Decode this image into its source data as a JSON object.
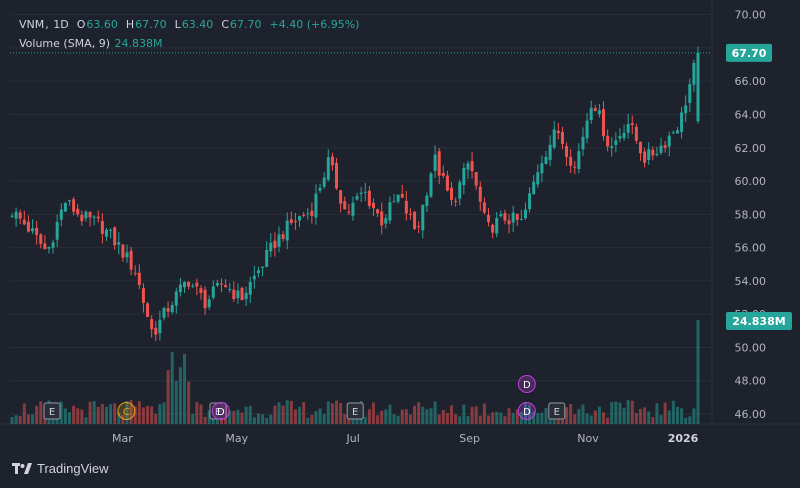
{
  "legend": {
    "symbol": "VNM",
    "interval": "1D",
    "open_label": "O",
    "open": "63.60",
    "high_label": "H",
    "high": "67.70",
    "low_label": "L",
    "low": "63.40",
    "close_label": "C",
    "close": "67.70",
    "change": "+4.40 (+6.95%)",
    "volume_label": "Volume (SMA, 9)",
    "volume_value": "24.838M"
  },
  "branding": {
    "name": "TradingView"
  },
  "colors": {
    "up": "#26a69a",
    "down": "#ef5350",
    "background": "#1e222d",
    "grid": "#2a2e39",
    "text": "#b2b5be",
    "dividend": "#c03ee0",
    "split": "#e8a317"
  },
  "chart_data": {
    "type": "candlestick",
    "price_axis": {
      "ylim": [
        45.4,
        70.4
      ],
      "ticks": [
        "70.00",
        "68.00",
        "66.00",
        "64.00",
        "62.00",
        "60.00",
        "58.00",
        "56.00",
        "54.00",
        "52.00",
        "50.00",
        "48.00",
        "46.00"
      ]
    },
    "last_price_label": "67.70",
    "volume_label": "24.838M",
    "time_axis": {
      "labels": [
        "Mar",
        "May",
        "Jul",
        "Sep",
        "Nov",
        "2026"
      ]
    },
    "anchors": [
      {
        "m": "Jan",
        "c": 58.2
      },
      {
        "m": "Jan",
        "c": 57.1
      },
      {
        "m": "Feb",
        "c": 55.7
      },
      {
        "m": "Feb",
        "c": 58.8
      },
      {
        "m": "Feb",
        "c": 57.8
      },
      {
        "m": "Mar",
        "c": 57.4
      },
      {
        "m": "Mar",
        "c": 56.2
      },
      {
        "m": "Mar",
        "c": 54.6
      },
      {
        "m": "Mar",
        "c": 50.8
      },
      {
        "m": "Apr",
        "c": 52.6
      },
      {
        "m": "Apr",
        "c": 54.1
      },
      {
        "m": "Apr",
        "c": 52.7
      },
      {
        "m": "May",
        "c": 53.9
      },
      {
        "m": "May",
        "c": 52.9
      },
      {
        "m": "Jun",
        "c": 54.6
      },
      {
        "m": "Jun",
        "c": 56.4
      },
      {
        "m": "Jun",
        "c": 57.6
      },
      {
        "m": "Jul",
        "c": 58.2
      },
      {
        "m": "Jul",
        "c": 61.2
      },
      {
        "m": "Jul",
        "c": 58.0
      },
      {
        "m": "Aug",
        "c": 59.4
      },
      {
        "m": "Aug",
        "c": 57.6
      },
      {
        "m": "Aug",
        "c": 59.1
      },
      {
        "m": "Aug",
        "c": 56.9
      },
      {
        "m": "Sep",
        "c": 61.4
      },
      {
        "m": "Sep",
        "c": 58.6
      },
      {
        "m": "Sep",
        "c": 61.2
      },
      {
        "m": "Oct",
        "c": 57.1
      },
      {
        "m": "Oct",
        "c": 57.8
      },
      {
        "m": "Oct",
        "c": 57.5
      },
      {
        "m": "Oct",
        "c": 61.1
      },
      {
        "m": "Nov",
        "c": 63.1
      },
      {
        "m": "Nov",
        "c": 60.8
      },
      {
        "m": "Nov",
        "c": 65.1
      },
      {
        "m": "Dec",
        "c": 61.9
      },
      {
        "m": "Dec",
        "c": 63.6
      },
      {
        "m": "Dec",
        "c": 61.3
      },
      {
        "m": "Dec",
        "c": 62.2
      },
      {
        "m": "Jan",
        "c": 63.6
      },
      {
        "m": "Jan",
        "c": 67.7
      }
    ],
    "events": [
      {
        "type": "earnings",
        "letter": "E",
        "month": "Jan"
      },
      {
        "type": "split",
        "letter": "C",
        "month": "Mar"
      },
      {
        "type": "earnings",
        "letter": "E",
        "month": "Apr"
      },
      {
        "type": "dividend",
        "letter": "D",
        "month": "May"
      },
      {
        "type": "earnings",
        "letter": "E",
        "month": "Jul"
      },
      {
        "type": "dividend",
        "letter": "D",
        "month": "Oct"
      },
      {
        "type": "dividend",
        "letter": "D",
        "month": "Oct"
      },
      {
        "type": "earnings",
        "letter": "E",
        "month": "Oct"
      }
    ]
  }
}
